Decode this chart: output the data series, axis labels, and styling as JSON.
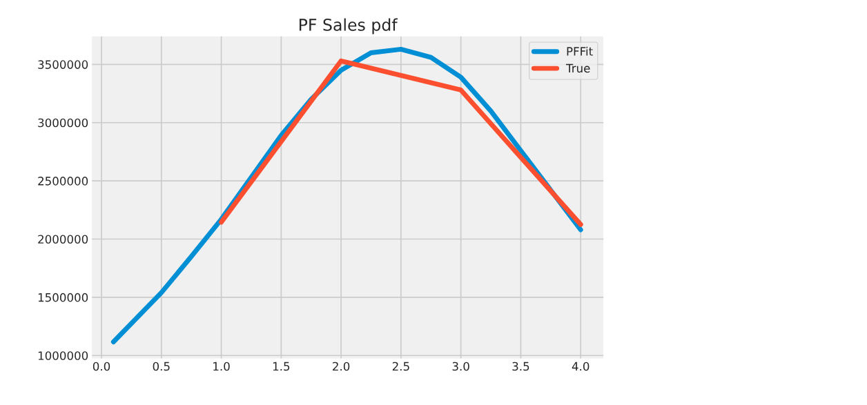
{
  "chart_data": {
    "type": "line",
    "title": "PF Sales pdf",
    "series": [
      {
        "name": "PFFit",
        "color": "#008fd5",
        "x": [
          0.1,
          0.5,
          0.75,
          1.0,
          1.25,
          1.5,
          1.75,
          2.0,
          2.25,
          2.5,
          2.75,
          3.0,
          3.25,
          3.5,
          3.75,
          4.0
        ],
        "values": [
          1117000,
          1540000,
          1850000,
          2170000,
          2530000,
          2890000,
          3200000,
          3450000,
          3600000,
          3630000,
          3560000,
          3390000,
          3100000,
          2760000,
          2420000,
          2080000
        ]
      },
      {
        "name": "True",
        "color": "#fc4f30",
        "x": [
          1.0,
          2.0,
          3.0,
          4.0
        ],
        "values": [
          2145000,
          3530000,
          3280000,
          2125000
        ]
      }
    ],
    "xlim": [
      -0.08,
      4.19
    ],
    "xticks": [
      {
        "value": 0.0,
        "label": "0.0"
      },
      0.5,
      {
        "value": 1.0,
        "label": "1.0"
      },
      1.5,
      {
        "value": 2.0,
        "label": "2.0"
      },
      2.5,
      {
        "value": 3.0,
        "label": "3.0"
      },
      3.5,
      {
        "value": 4.0,
        "label": "4.0"
      }
    ],
    "ylim": [
      975000,
      3740000
    ],
    "yticks": [
      1000000,
      1500000,
      2000000,
      2500000,
      3000000,
      3500000
    ],
    "grid": true,
    "legend": "top right",
    "marker": "none",
    "line_style": "solid"
  }
}
